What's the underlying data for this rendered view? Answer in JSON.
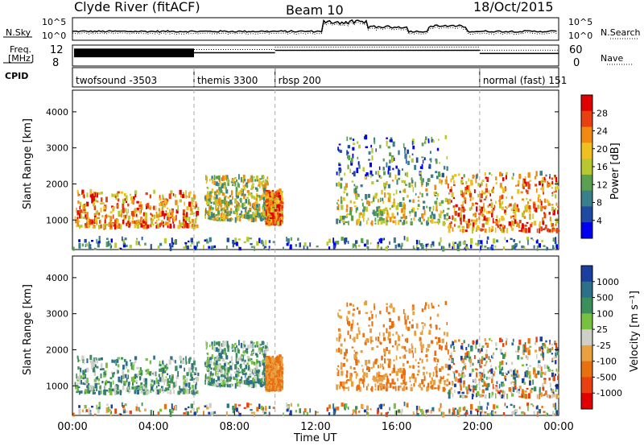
{
  "header": {
    "station": "Clyde River (fitACF)",
    "beam": "Beam 10",
    "date": "18/Oct/2015"
  },
  "noise_panel": {
    "left_label": "N.Sky",
    "right_label": "N.Search",
    "left_ticks": [
      "10^5",
      "10^0"
    ],
    "right_ticks": [
      "10^5",
      "10^0"
    ]
  },
  "freq_panel": {
    "left_label_1": "Freq.",
    "left_label_2": "[MHz]",
    "right_label": "Nave",
    "left_ticks": [
      "12",
      "8"
    ],
    "right_ticks": [
      "60",
      "0"
    ]
  },
  "cpid": {
    "label": "CPID",
    "segments": [
      {
        "name": "twofsound",
        "id": "-3503",
        "start_hour": 0
      },
      {
        "name": "themis",
        "id": "3300",
        "start_hour": 6
      },
      {
        "name": "rbsp",
        "id": "200",
        "start_hour": 10
      },
      {
        "name": "normal (fast)",
        "id": "151",
        "start_hour": 20.1
      }
    ]
  },
  "power_panel": {
    "ylabel": "Slant Range [km]",
    "cbar_label": "Power [dB]",
    "cbar_ticks": [
      "28",
      "24",
      "20",
      "16",
      "12",
      "8",
      "4"
    ]
  },
  "velocity_panel": {
    "ylabel": "Slant Range [km]",
    "cbar_label": "Velocity [m s⁻¹]",
    "cbar_ticks": [
      "1000",
      "500",
      "100",
      "25",
      "-25",
      "-100",
      "-500",
      "-1000"
    ]
  },
  "x_axis": {
    "label": "Time UT",
    "ticks": [
      "00:00",
      "04:00",
      "08:00",
      "12:00",
      "16:00",
      "20:00",
      "00:00"
    ]
  },
  "y_ticks": [
    "4000",
    "3000",
    "2000",
    "1000"
  ],
  "chart_data": {
    "type": "heatmap",
    "title": "Clyde River (fitACF)",
    "subtitle": "Beam 10",
    "date": "18/Oct/2015",
    "xlabel": "Time UT",
    "ylabel": "Slant Range [km]",
    "xlim_hours": [
      0,
      24
    ],
    "ylim_km": [
      180,
      4600
    ],
    "mode_change_hours": [
      6,
      10,
      20.1
    ],
    "frequency_mhz_by_mode": [
      {
        "start_hour": 0,
        "end_hour": 6,
        "freq_mhz": [
          9.5,
          12
        ]
      },
      {
        "start_hour": 6,
        "end_hour": 10,
        "freq_mhz": 10.8
      },
      {
        "start_hour": 10,
        "end_hour": 20.1,
        "freq_mhz": 11.5
      },
      {
        "start_hour": 20.1,
        "end_hour": 24,
        "freq_mhz": 10.6
      }
    ],
    "power_colorbar_db": [
      4,
      8,
      12,
      16,
      20,
      24,
      28
    ],
    "velocity_colorbar_ms": [
      1000,
      500,
      100,
      25,
      -25,
      -100,
      -500,
      -1000
    ],
    "power_colors": [
      "#0000ee",
      "#1f4aa3",
      "#3a7f8a",
      "#5aa050",
      "#b8c830",
      "#f0c020",
      "#f08a10",
      "#e84010",
      "#e00000"
    ],
    "velocity_colors": [
      "#1a3fa0",
      "#2e6f8a",
      "#3a8f5a",
      "#78c040",
      "#cfcfc8",
      "#e8a040",
      "#e87010",
      "#e84010",
      "#e00000"
    ],
    "scatter_regions": [
      {
        "start_hour": 0.1,
        "end_hour": 6.2,
        "range_km": [
          800,
          1800
        ],
        "power": "strong",
        "velocity": "positive ~100-500"
      },
      {
        "start_hour": 6.5,
        "end_hour": 9.6,
        "range_km": [
          1000,
          2200
        ],
        "power": "moderate",
        "velocity": "positive ~100"
      },
      {
        "start_hour": 9.5,
        "end_hour": 10.3,
        "range_km": [
          900,
          1800
        ],
        "power": "strong",
        "velocity": "negative ~-100"
      },
      {
        "start_hour": 13,
        "end_hour": 18.5,
        "range_km": [
          900,
          3300
        ],
        "power": "moderate",
        "velocity": "negative ~-100 to -500"
      },
      {
        "start_hour": 18.5,
        "end_hour": 24,
        "range_km": [
          700,
          2300
        ],
        "power": "strong",
        "velocity": "mixed"
      },
      {
        "start_hour": 0,
        "end_hour": 24,
        "range_km": [
          200,
          500
        ],
        "power": "weak-moderate",
        "velocity": "mixed"
      }
    ]
  }
}
